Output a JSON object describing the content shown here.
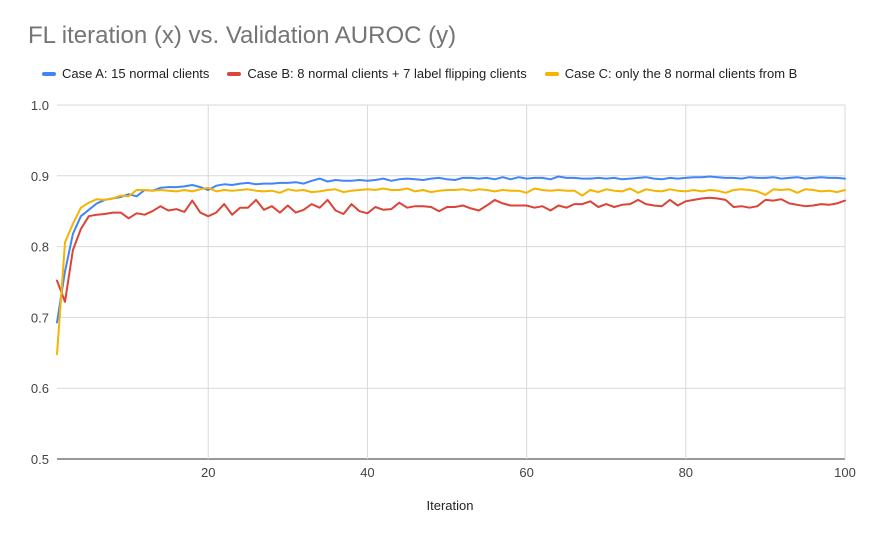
{
  "chart_data": {
    "type": "line",
    "title": "FL iteration (x) vs. Validation AUROC (y)",
    "xlabel": "Iteration",
    "ylabel": "",
    "xlim": [
      1,
      100
    ],
    "ylim": [
      0.5,
      1.0
    ],
    "xticks": [
      20,
      40,
      60,
      80,
      100
    ],
    "yticks": [
      0.5,
      0.6,
      0.7,
      0.8,
      0.9,
      1.0
    ],
    "ytick_labels": [
      "0.5",
      "0.6",
      "0.7",
      "0.8",
      "0.9",
      "1.0"
    ],
    "grid": true,
    "legend_position": "top",
    "series": [
      {
        "name": "Case A: 15 normal clients",
        "color": "#4285F4",
        "values": [
          0.693,
          0.765,
          0.818,
          0.843,
          0.852,
          0.861,
          0.866,
          0.868,
          0.87,
          0.874,
          0.871,
          0.88,
          0.879,
          0.883,
          0.884,
          0.884,
          0.885,
          0.887,
          0.884,
          0.88,
          0.886,
          0.888,
          0.887,
          0.889,
          0.89,
          0.888,
          0.889,
          0.889,
          0.89,
          0.89,
          0.891,
          0.889,
          0.893,
          0.896,
          0.892,
          0.894,
          0.893,
          0.893,
          0.894,
          0.893,
          0.894,
          0.896,
          0.893,
          0.895,
          0.896,
          0.895,
          0.894,
          0.896,
          0.897,
          0.895,
          0.894,
          0.897,
          0.897,
          0.896,
          0.897,
          0.895,
          0.898,
          0.895,
          0.898,
          0.896,
          0.897,
          0.897,
          0.895,
          0.899,
          0.897,
          0.897,
          0.896,
          0.896,
          0.897,
          0.896,
          0.897,
          0.895,
          0.896,
          0.897,
          0.898,
          0.896,
          0.895,
          0.897,
          0.896,
          0.897,
          0.898,
          0.898,
          0.899,
          0.898,
          0.897,
          0.897,
          0.896,
          0.898,
          0.897,
          0.897,
          0.898,
          0.896,
          0.897,
          0.898,
          0.896,
          0.897,
          0.898,
          0.897,
          0.897,
          0.896
        ]
      },
      {
        "name": "Case B: 8 normal clients + 7 label flipping clients",
        "color": "#DB4437",
        "values": [
          0.752,
          0.722,
          0.795,
          0.825,
          0.843,
          0.845,
          0.846,
          0.848,
          0.848,
          0.84,
          0.847,
          0.845,
          0.85,
          0.857,
          0.851,
          0.853,
          0.849,
          0.865,
          0.848,
          0.843,
          0.848,
          0.86,
          0.845,
          0.855,
          0.855,
          0.866,
          0.852,
          0.857,
          0.848,
          0.858,
          0.848,
          0.852,
          0.86,
          0.855,
          0.866,
          0.851,
          0.846,
          0.86,
          0.85,
          0.847,
          0.856,
          0.852,
          0.853,
          0.862,
          0.855,
          0.857,
          0.857,
          0.856,
          0.85,
          0.856,
          0.856,
          0.858,
          0.854,
          0.851,
          0.858,
          0.866,
          0.861,
          0.858,
          0.858,
          0.858,
          0.855,
          0.857,
          0.851,
          0.858,
          0.855,
          0.86,
          0.86,
          0.864,
          0.856,
          0.86,
          0.856,
          0.859,
          0.86,
          0.866,
          0.86,
          0.858,
          0.857,
          0.866,
          0.858,
          0.864,
          0.866,
          0.868,
          0.869,
          0.868,
          0.866,
          0.856,
          0.857,
          0.855,
          0.857,
          0.866,
          0.865,
          0.867,
          0.861,
          0.859,
          0.857,
          0.858,
          0.86,
          0.859,
          0.861,
          0.865
        ]
      },
      {
        "name": "Case C: only the 8 normal clients from B",
        "color": "#F4B400",
        "values": [
          0.648,
          0.806,
          0.832,
          0.855,
          0.862,
          0.867,
          0.866,
          0.868,
          0.872,
          0.871,
          0.88,
          0.88,
          0.879,
          0.88,
          0.879,
          0.878,
          0.88,
          0.878,
          0.881,
          0.883,
          0.878,
          0.88,
          0.879,
          0.88,
          0.881,
          0.879,
          0.878,
          0.879,
          0.876,
          0.881,
          0.879,
          0.88,
          0.877,
          0.878,
          0.88,
          0.881,
          0.877,
          0.879,
          0.88,
          0.881,
          0.88,
          0.882,
          0.88,
          0.88,
          0.882,
          0.878,
          0.88,
          0.877,
          0.879,
          0.88,
          0.88,
          0.881,
          0.879,
          0.881,
          0.88,
          0.878,
          0.88,
          0.879,
          0.879,
          0.876,
          0.882,
          0.88,
          0.879,
          0.88,
          0.879,
          0.879,
          0.872,
          0.88,
          0.877,
          0.881,
          0.879,
          0.878,
          0.882,
          0.876,
          0.881,
          0.879,
          0.878,
          0.881,
          0.879,
          0.878,
          0.88,
          0.878,
          0.88,
          0.879,
          0.876,
          0.88,
          0.881,
          0.88,
          0.878,
          0.873,
          0.881,
          0.88,
          0.881,
          0.876,
          0.881,
          0.88,
          0.878,
          0.879,
          0.877,
          0.88
        ]
      }
    ]
  }
}
